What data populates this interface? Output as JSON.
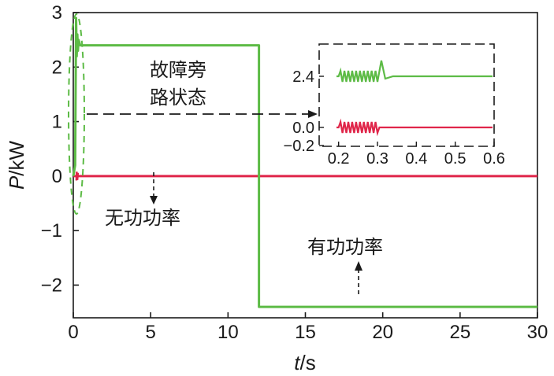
{
  "chart_data": [
    {
      "type": "line",
      "title": "",
      "xlabel_italic": "t",
      "xlabel_unit": "/s",
      "ylabel_italic": "P",
      "ylabel_unit": "/kW",
      "xlim": [
        0,
        30
      ],
      "ylim": [
        -2.6,
        3
      ],
      "xticks": [
        "0",
        "5",
        "10",
        "15",
        "20",
        "25",
        "30"
      ],
      "yticks": [
        "3",
        "2",
        "1",
        "0",
        "−1",
        "−2"
      ],
      "series": [
        {
          "name": "有功功率",
          "color": "#5dbb46",
          "points": [
            [
              0,
              0
            ],
            [
              0.3,
              2.8
            ],
            [
              0.45,
              2.4
            ],
            [
              12,
              2.4
            ],
            [
              12.1,
              -2.4
            ],
            [
              30,
              -2.4
            ]
          ]
        },
        {
          "name": "无功功率",
          "color": "#e0264a",
          "points": [
            [
              0,
              0
            ],
            [
              30,
              0
            ]
          ]
        }
      ],
      "annotations": {
        "fault_bypass": "故障旁\n路状态",
        "reactive_power": "无功功率",
        "active_power": "有功功率"
      }
    },
    {
      "type": "line",
      "title": "",
      "xlim": [
        0.15,
        0.6
      ],
      "ylim": [
        -0.2,
        3.0
      ],
      "xticks": [
        "0.2",
        "0.3",
        "0.4",
        "0.5",
        "0.6"
      ],
      "yticks": [
        "2.4",
        "0.0",
        "−0.2"
      ],
      "series": [
        {
          "name": "有功功率",
          "color": "#5dbb46",
          "base": 2.4,
          "oscillation_start": 0.2,
          "oscillation_end": 0.3,
          "spike": 2.9
        },
        {
          "name": "无功功率",
          "color": "#e0264a",
          "base": 0.0,
          "oscillation_start": 0.2,
          "oscillation_end": 0.3
        }
      ]
    }
  ]
}
